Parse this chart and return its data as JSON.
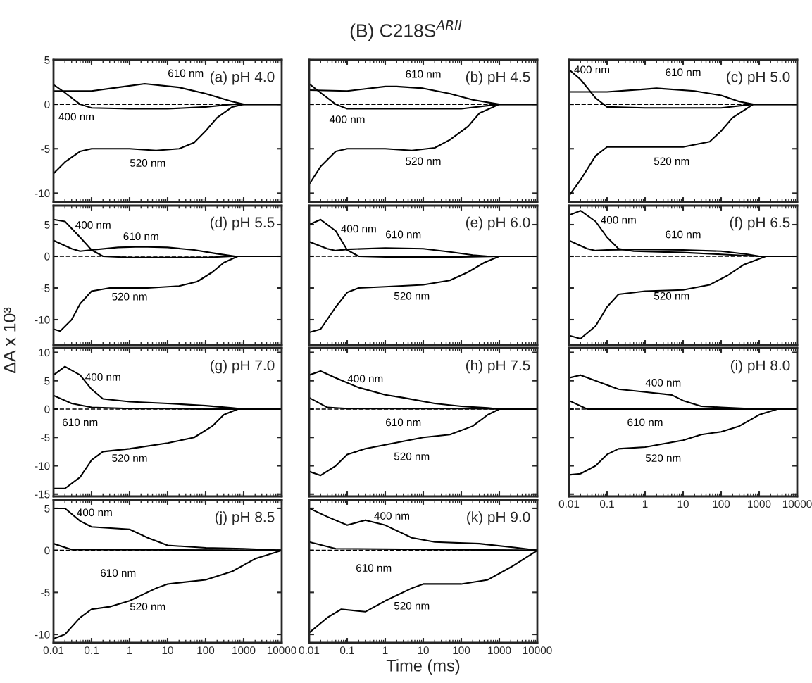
{
  "chart_data": [
    {
      "type": "line",
      "title": "(a) pH 4.0",
      "log": "x",
      "xlim": [
        0.01,
        10000
      ],
      "ylim": [
        -11,
        5
      ],
      "xticks": [
        0.01,
        0.1,
        1,
        10,
        100,
        1000,
        10000
      ],
      "yticks": [
        -10,
        -5,
        0,
        5
      ],
      "tick_labels": "y",
      "line_style": "solid",
      "ref_lines": [
        {
          "axis": "y",
          "value": 0,
          "color": "#000000",
          "line_style": "dashed"
        }
      ],
      "annotations": [
        "(B) C218S$^{ARII}$"
      ],
      "series": [
        {
          "name": "400 nm",
          "color": "#000000",
          "x": [
            0.01,
            0.02,
            0.05,
            0.1,
            1,
            10,
            100,
            500,
            10000
          ],
          "values": [
            2.2,
            1.3,
            0,
            -0.4,
            -0.5,
            -0.5,
            -0.3,
            0,
            0
          ]
        },
        {
          "name": "610 nm",
          "color": "#000000",
          "x": [
            0.01,
            0.1,
            0.5,
            2.5,
            20,
            100,
            500,
            1000,
            10000
          ],
          "values": [
            1.5,
            1.5,
            1.9,
            2.3,
            1.9,
            1.2,
            0.3,
            0,
            0
          ]
        },
        {
          "name": "520 nm",
          "color": "#000000",
          "x": [
            0.01,
            0.02,
            0.05,
            0.1,
            1,
            5,
            20,
            50,
            100,
            200,
            500,
            1000,
            10000
          ],
          "values": [
            -7.8,
            -6.5,
            -5.3,
            -5,
            -5,
            -5.2,
            -5,
            -4.3,
            -3,
            -1.5,
            -0.3,
            0,
            0
          ]
        }
      ]
    },
    {
      "type": "line",
      "title": "(b) pH 4.5",
      "log": "x",
      "xlim": [
        0.01,
        10000
      ],
      "ylim": [
        -11,
        5
      ],
      "xticks": [
        0.01,
        0.1,
        1,
        10,
        100,
        1000,
        10000
      ],
      "yticks": [
        -10,
        -5,
        0,
        5
      ],
      "tick_labels": false,
      "line_style": "solid",
      "ref_lines": [
        {
          "axis": "y",
          "value": 0,
          "color": "#000000",
          "line_style": "dashed"
        }
      ],
      "series": [
        {
          "name": "400 nm",
          "color": "#000000",
          "x": [
            0.01,
            0.02,
            0.05,
            0.1,
            1,
            10,
            100,
            1000,
            10000
          ],
          "values": [
            2.3,
            1.3,
            0,
            -0.5,
            -0.5,
            -0.5,
            -0.5,
            0,
            0
          ]
        },
        {
          "name": "610 nm",
          "color": "#000000",
          "x": [
            0.01,
            0.1,
            1,
            2,
            10,
            50,
            200,
            1000,
            10000
          ],
          "values": [
            1.6,
            1.5,
            2,
            2,
            1.8,
            1.2,
            0.5,
            0,
            0
          ]
        },
        {
          "name": "520 nm",
          "color": "#000000",
          "x": [
            0.01,
            0.02,
            0.05,
            0.1,
            1,
            5,
            20,
            50,
            150,
            300,
            1000,
            10000
          ],
          "values": [
            -9,
            -7,
            -5.3,
            -5,
            -5,
            -5.2,
            -4.9,
            -4,
            -2.5,
            -1,
            0,
            0
          ]
        }
      ]
    },
    {
      "type": "line",
      "title": "(c) pH 5.0",
      "log": "x",
      "xlim": [
        0.01,
        10000
      ],
      "ylim": [
        -11,
        5
      ],
      "xticks": [
        0.01,
        0.1,
        1,
        10,
        100,
        1000,
        10000
      ],
      "yticks": [
        -10,
        -5,
        0,
        5
      ],
      "tick_labels": false,
      "line_style": "solid",
      "ref_lines": [
        {
          "axis": "y",
          "value": 0,
          "color": "#000000",
          "line_style": "dashed"
        }
      ],
      "series": [
        {
          "name": "400 nm",
          "color": "#000000",
          "x": [
            0.01,
            0.02,
            0.05,
            0.1,
            1,
            10,
            100,
            700,
            10000
          ],
          "values": [
            3.9,
            2.8,
            0.7,
            -0.3,
            -0.4,
            -0.4,
            -0.4,
            0,
            0
          ]
        },
        {
          "name": "610 nm",
          "color": "#000000",
          "x": [
            0.01,
            0.1,
            1,
            2,
            20,
            100,
            300,
            700,
            10000
          ],
          "values": [
            1.4,
            1.4,
            1.7,
            1.8,
            1.5,
            1,
            0.3,
            0,
            0
          ]
        },
        {
          "name": "520 nm",
          "color": "#000000",
          "x": [
            0.01,
            0.02,
            0.05,
            0.1,
            1,
            10,
            50,
            100,
            200,
            700,
            10000
          ],
          "values": [
            -10.3,
            -8.5,
            -5.8,
            -4.8,
            -4.8,
            -4.8,
            -4.2,
            -3,
            -1.5,
            0,
            0
          ]
        }
      ]
    },
    {
      "type": "line",
      "title": "(d) pH 5.5",
      "log": "x",
      "xlim": [
        0.01,
        10000
      ],
      "ylim": [
        -14,
        8
      ],
      "xticks": [
        0.01,
        0.1,
        1,
        10,
        100,
        1000,
        10000
      ],
      "yticks": [
        -10,
        -5,
        0,
        5
      ],
      "tick_labels": "y",
      "line_style": "solid",
      "ref_lines": [
        {
          "axis": "y",
          "value": 0,
          "color": "#000000",
          "line_style": "dashed"
        }
      ],
      "series": [
        {
          "name": "400 nm",
          "color": "#000000",
          "x": [
            0.01,
            0.02,
            0.05,
            0.1,
            0.2,
            1,
            100,
            500,
            10000
          ],
          "values": [
            5.8,
            5.5,
            3,
            1,
            0,
            -0.2,
            -0.2,
            0,
            0
          ]
        },
        {
          "name": "610 nm",
          "color": "#000000",
          "x": [
            0.01,
            0.03,
            0.05,
            0.1,
            0.5,
            2,
            10,
            50,
            200,
            600,
            10000
          ],
          "values": [
            2.5,
            1.2,
            0.8,
            1,
            1.4,
            1.5,
            1.4,
            1,
            0.4,
            0,
            0
          ]
        },
        {
          "name": "520 nm",
          "color": "#000000",
          "x": [
            0.01,
            0.015,
            0.03,
            0.05,
            0.1,
            0.3,
            3,
            20,
            60,
            150,
            300,
            700,
            10000
          ],
          "values": [
            -11.5,
            -11.8,
            -10,
            -7.5,
            -5.5,
            -5,
            -5,
            -4.7,
            -4,
            -2.5,
            -1,
            0,
            0
          ]
        }
      ]
    },
    {
      "type": "line",
      "title": "(e) pH 6.0",
      "log": "x",
      "xlim": [
        0.01,
        10000
      ],
      "ylim": [
        -14,
        8
      ],
      "xticks": [
        0.01,
        0.1,
        1,
        10,
        100,
        1000,
        10000
      ],
      "yticks": [
        -10,
        -5,
        0,
        5
      ],
      "tick_labels": false,
      "line_style": "solid",
      "ref_lines": [
        {
          "axis": "y",
          "value": 0,
          "color": "#000000",
          "line_style": "dashed"
        }
      ],
      "series": [
        {
          "name": "400 nm",
          "color": "#000000",
          "x": [
            0.01,
            0.02,
            0.05,
            0.1,
            0.2,
            1,
            100,
            1000,
            10000
          ],
          "values": [
            5,
            5.8,
            4,
            1,
            0,
            -0.1,
            -0.1,
            0,
            0
          ]
        },
        {
          "name": "610 nm",
          "color": "#000000",
          "x": [
            0.01,
            0.03,
            0.05,
            0.1,
            1,
            10,
            50,
            200,
            500,
            10000
          ],
          "values": [
            2.3,
            1.2,
            0.9,
            1.1,
            1.3,
            1.2,
            0.7,
            0.2,
            0,
            0
          ]
        },
        {
          "name": "520 nm",
          "color": "#000000",
          "x": [
            0.01,
            0.02,
            0.05,
            0.1,
            0.2,
            1,
            10,
            50,
            150,
            400,
            1000,
            10000
          ],
          "values": [
            -12,
            -11.5,
            -8,
            -5.7,
            -5,
            -4.8,
            -4.5,
            -3.8,
            -2.5,
            -1,
            0,
            0
          ]
        }
      ]
    },
    {
      "type": "line",
      "title": "(f) pH 6.5",
      "log": "x",
      "xlim": [
        0.01,
        10000
      ],
      "ylim": [
        -14,
        8
      ],
      "xticks": [
        0.01,
        0.1,
        1,
        10,
        100,
        1000,
        10000
      ],
      "yticks": [
        -10,
        -5,
        0,
        5
      ],
      "tick_labels": false,
      "line_style": "solid",
      "ref_lines": [
        {
          "axis": "y",
          "value": 0,
          "color": "#000000",
          "line_style": "dashed"
        }
      ],
      "series": [
        {
          "name": "400 nm",
          "color": "#000000",
          "x": [
            0.01,
            0.02,
            0.05,
            0.1,
            0.2,
            0.5,
            10,
            100,
            1000,
            10000
          ],
          "values": [
            6.5,
            7.2,
            5.5,
            3,
            1.2,
            0.8,
            0.6,
            0.3,
            0,
            0
          ]
        },
        {
          "name": "610 nm",
          "color": "#000000",
          "x": [
            0.01,
            0.03,
            0.05,
            0.1,
            1,
            10,
            100,
            500,
            1000,
            10000
          ],
          "values": [
            2.5,
            1.2,
            0.9,
            1,
            1.1,
            1,
            0.8,
            0.3,
            0,
            0
          ]
        },
        {
          "name": "520 nm",
          "color": "#000000",
          "x": [
            0.01,
            0.02,
            0.05,
            0.1,
            0.2,
            1,
            10,
            50,
            150,
            400,
            1500,
            10000
          ],
          "values": [
            -12.5,
            -13,
            -11,
            -8,
            -6,
            -5.5,
            -5.3,
            -4.5,
            -3,
            -1.3,
            0,
            0
          ]
        }
      ]
    },
    {
      "type": "line",
      "title": "(g) pH 7.0",
      "ylabel": "ΔA x 10³",
      "log": "x",
      "xlim": [
        0.01,
        10000
      ],
      "ylim": [
        -15.4,
        10.8
      ],
      "xticks": [
        0.01,
        0.1,
        1,
        10,
        100,
        1000,
        10000
      ],
      "yticks": [
        -15,
        -10,
        -5,
        0,
        5,
        10
      ],
      "tick_labels": "y",
      "line_style": "solid",
      "ref_lines": [
        {
          "axis": "y",
          "value": 0,
          "color": "#000000",
          "line_style": "dashed"
        }
      ],
      "series": [
        {
          "name": "400 nm",
          "color": "#000000",
          "x": [
            0.01,
            0.02,
            0.05,
            0.1,
            0.2,
            1,
            10,
            100,
            500,
            1000,
            10000
          ],
          "values": [
            6,
            7.5,
            6,
            3.5,
            1.8,
            1.3,
            1,
            0.6,
            0.2,
            0,
            0
          ]
        },
        {
          "name": "610 nm",
          "color": "#000000",
          "x": [
            0.01,
            0.03,
            0.1,
            1,
            10,
            100,
            10000
          ],
          "values": [
            2.4,
            1,
            0.3,
            0.1,
            0.1,
            0,
            0
          ]
        },
        {
          "name": "520 nm",
          "color": "#000000",
          "x": [
            0.01,
            0.02,
            0.05,
            0.1,
            0.2,
            1,
            10,
            50,
            150,
            300,
            700,
            10000
          ],
          "values": [
            -14,
            -14,
            -12,
            -9,
            -7.5,
            -7,
            -6,
            -5,
            -3,
            -1,
            0,
            0
          ]
        }
      ]
    },
    {
      "type": "line",
      "title": "(h) pH 7.5",
      "log": "x",
      "xlim": [
        0.01,
        10000
      ],
      "ylim": [
        -15.4,
        10.8
      ],
      "xticks": [
        0.01,
        0.1,
        1,
        10,
        100,
        1000,
        10000
      ],
      "yticks": [
        -15,
        -10,
        -5,
        0,
        5,
        10
      ],
      "tick_labels": false,
      "line_style": "solid",
      "ref_lines": [
        {
          "axis": "y",
          "value": 0,
          "color": "#000000",
          "line_style": "dashed"
        }
      ],
      "series": [
        {
          "name": "400 nm",
          "color": "#000000",
          "x": [
            0.01,
            0.02,
            0.05,
            0.2,
            1,
            3,
            20,
            100,
            500,
            1000,
            10000
          ],
          "values": [
            6,
            6.7,
            5.5,
            3.8,
            2.5,
            2,
            1,
            0.5,
            0.2,
            0,
            0
          ]
        },
        {
          "name": "610 nm",
          "color": "#000000",
          "x": [
            0.01,
            0.03,
            0.1,
            1,
            100,
            10000
          ],
          "values": [
            2,
            0.3,
            0.1,
            0.1,
            0.1,
            0
          ]
        },
        {
          "name": "520 nm",
          "color": "#000000",
          "x": [
            0.01,
            0.02,
            0.05,
            0.1,
            0.3,
            1,
            10,
            50,
            200,
            500,
            1000,
            10000
          ],
          "values": [
            -11,
            -11.7,
            -10,
            -8,
            -7,
            -6.3,
            -5,
            -4.5,
            -3,
            -1,
            0,
            0
          ]
        }
      ]
    },
    {
      "type": "line",
      "title": "(i) pH 8.0",
      "log": "x",
      "xlim": [
        0.01,
        10000
      ],
      "ylim": [
        -15.4,
        10.8
      ],
      "xticks": [
        0.01,
        0.1,
        1,
        10,
        100,
        1000,
        10000
      ],
      "yticks": [
        -15,
        -10,
        -5,
        0,
        5,
        10
      ],
      "tick_labels": "x",
      "line_style": "solid",
      "ref_lines": [
        {
          "axis": "y",
          "value": 0,
          "color": "#000000",
          "line_style": "dashed"
        }
      ],
      "series": [
        {
          "name": "400 nm",
          "color": "#000000",
          "x": [
            0.01,
            0.02,
            0.05,
            0.2,
            1,
            5,
            10,
            30,
            100,
            1000,
            10000
          ],
          "values": [
            5.5,
            6,
            5,
            3.5,
            3,
            2.5,
            1.5,
            0.5,
            0.3,
            0,
            0
          ]
        },
        {
          "name": "610 nm",
          "color": "#000000",
          "x": [
            0.01,
            0.03,
            10000
          ],
          "values": [
            1.5,
            0,
            0
          ]
        },
        {
          "name": "520 nm",
          "color": "#000000",
          "x": [
            0.01,
            0.02,
            0.05,
            0.1,
            0.2,
            1,
            10,
            30,
            100,
            300,
            1000,
            3000,
            10000
          ],
          "values": [
            -11.6,
            -11.4,
            -10,
            -8,
            -7,
            -6.7,
            -5.5,
            -4.5,
            -4,
            -3,
            -1,
            0,
            0
          ]
        }
      ]
    },
    {
      "type": "line",
      "title": "(j) pH 8.5",
      "log": "x",
      "xlim": [
        0.01,
        10000
      ],
      "ylim": [
        -11,
        6
      ],
      "xticks": [
        0.01,
        0.1,
        1,
        10,
        100,
        1000,
        10000
      ],
      "yticks": [
        -10,
        -5,
        0,
        5
      ],
      "line_style": "solid",
      "ref_lines": [
        {
          "axis": "y",
          "value": 0,
          "color": "#000000",
          "line_style": "dashed"
        }
      ],
      "series": [
        {
          "name": "400 nm",
          "color": "#000000",
          "x": [
            0.01,
            0.02,
            0.05,
            0.1,
            1,
            3,
            10,
            100,
            1000,
            10000
          ],
          "values": [
            5,
            5,
            3.5,
            2.8,
            2.5,
            1.5,
            0.6,
            0.3,
            0.2,
            0
          ]
        },
        {
          "name": "610 nm",
          "color": "#000000",
          "x": [
            0.01,
            0.03,
            10000
          ],
          "values": [
            0.8,
            0.1,
            0
          ]
        },
        {
          "name": "520 nm",
          "color": "#000000",
          "x": [
            0.01,
            0.02,
            0.05,
            0.1,
            0.3,
            1,
            5,
            10,
            100,
            500,
            2000,
            10000
          ],
          "values": [
            -10.5,
            -10,
            -8,
            -7,
            -6.7,
            -6,
            -4.5,
            -4,
            -3.5,
            -2.5,
            -1,
            0
          ]
        }
      ]
    },
    {
      "type": "line",
      "title": "(k) pH 9.0",
      "xlabel": "Time (ms)",
      "log": "x",
      "xlim": [
        0.01,
        10000
      ],
      "ylim": [
        -11,
        6
      ],
      "xticks": [
        0.01,
        0.1,
        1,
        10,
        100,
        1000,
        10000
      ],
      "yticks": [
        -10,
        -5,
        0,
        5
      ],
      "tick_labels": "x",
      "line_style": "solid",
      "ref_lines": [
        {
          "axis": "y",
          "value": 0,
          "color": "#000000",
          "line_style": "dashed"
        }
      ],
      "series": [
        {
          "name": "400 nm",
          "color": "#000000",
          "x": [
            0.01,
            0.03,
            0.1,
            0.3,
            1,
            5,
            20,
            300,
            3000,
            10000
          ],
          "values": [
            5,
            4,
            3,
            3.6,
            3,
            1.5,
            1,
            0.8,
            0.3,
            0
          ]
        },
        {
          "name": "610 nm",
          "color": "#000000",
          "x": [
            0.01,
            0.05,
            10000
          ],
          "values": [
            1,
            0.2,
            0
          ]
        },
        {
          "name": "520 nm",
          "color": "#000000",
          "x": [
            0.01,
            0.03,
            0.07,
            0.3,
            1,
            5,
            10,
            100,
            500,
            2000,
            10000
          ],
          "values": [
            -9.8,
            -8,
            -7,
            -7.3,
            -6,
            -4.5,
            -4,
            -4,
            -3.5,
            -2,
            0
          ]
        }
      ]
    }
  ]
}
